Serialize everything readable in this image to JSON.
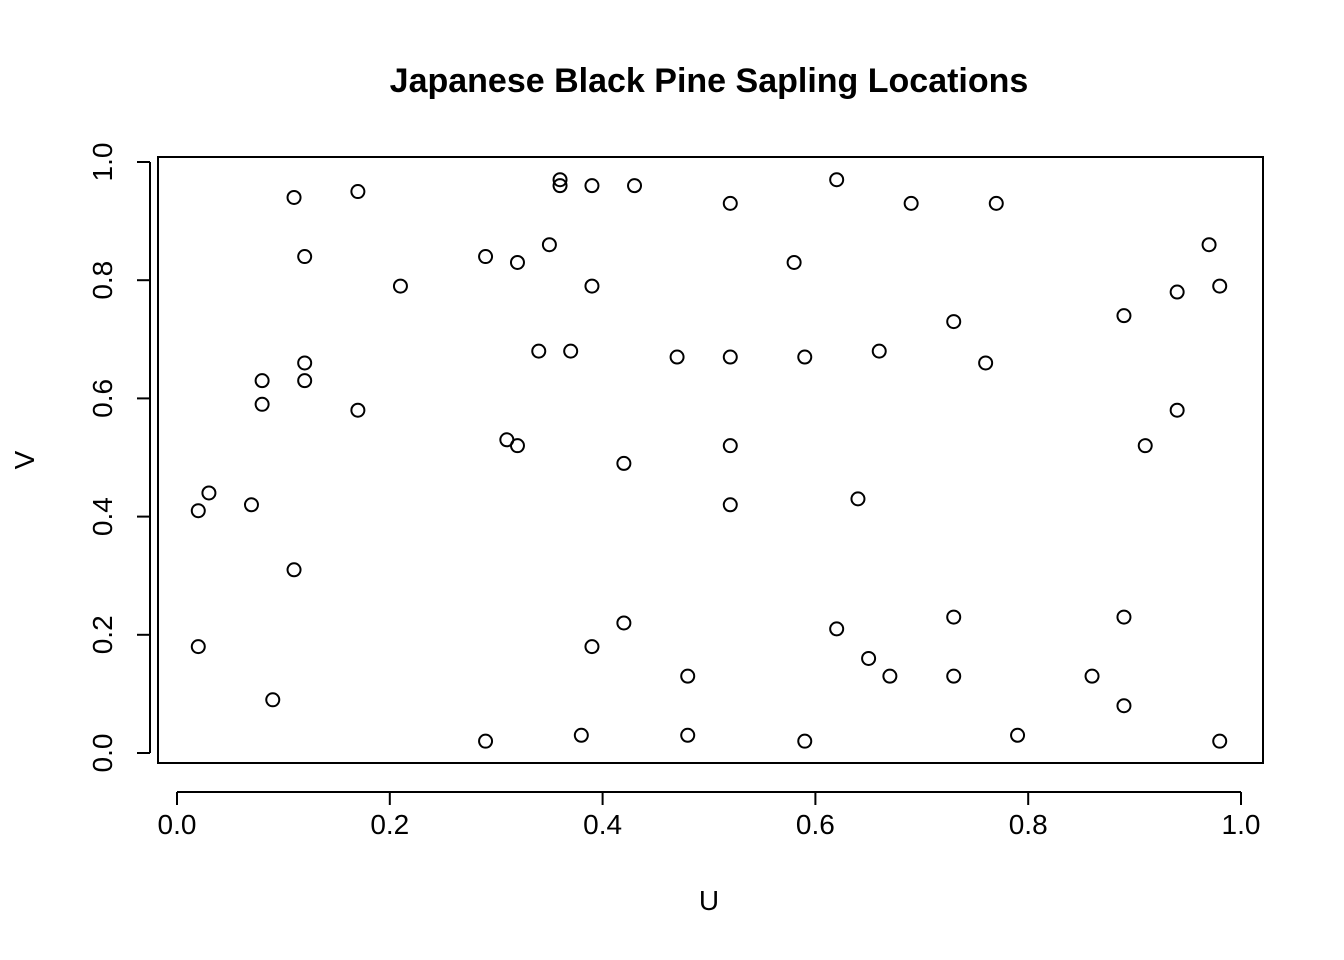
{
  "chart_data": {
    "type": "scatter",
    "title": "Japanese Black Pine Sapling Locations",
    "xlabel": "U",
    "ylabel": "V",
    "xlim": [
      0.0,
      1.0
    ],
    "ylim": [
      0.0,
      1.0
    ],
    "xticks": [
      "0.0",
      "0.2",
      "0.4",
      "0.6",
      "0.8",
      "1.0"
    ],
    "yticks": [
      "0.0",
      "0.2",
      "0.4",
      "0.6",
      "0.8",
      "1.0"
    ],
    "grid": false,
    "marker": "open-circle",
    "points": [
      [
        0.11,
        0.94
      ],
      [
        0.17,
        0.95
      ],
      [
        0.12,
        0.84
      ],
      [
        0.21,
        0.79
      ],
      [
        0.29,
        0.84
      ],
      [
        0.32,
        0.83
      ],
      [
        0.35,
        0.86
      ],
      [
        0.36,
        0.97
      ],
      [
        0.36,
        0.96
      ],
      [
        0.39,
        0.96
      ],
      [
        0.43,
        0.96
      ],
      [
        0.39,
        0.79
      ],
      [
        0.52,
        0.93
      ],
      [
        0.58,
        0.83
      ],
      [
        0.62,
        0.97
      ],
      [
        0.69,
        0.93
      ],
      [
        0.77,
        0.93
      ],
      [
        0.97,
        0.86
      ],
      [
        0.94,
        0.78
      ],
      [
        0.98,
        0.79
      ],
      [
        0.89,
        0.74
      ],
      [
        0.73,
        0.73
      ],
      [
        0.76,
        0.66
      ],
      [
        0.66,
        0.68
      ],
      [
        0.59,
        0.67
      ],
      [
        0.52,
        0.67
      ],
      [
        0.47,
        0.67
      ],
      [
        0.34,
        0.68
      ],
      [
        0.37,
        0.68
      ],
      [
        0.12,
        0.66
      ],
      [
        0.12,
        0.63
      ],
      [
        0.08,
        0.63
      ],
      [
        0.08,
        0.59
      ],
      [
        0.17,
        0.58
      ],
      [
        0.31,
        0.53
      ],
      [
        0.32,
        0.52
      ],
      [
        0.52,
        0.52
      ],
      [
        0.42,
        0.49
      ],
      [
        0.94,
        0.58
      ],
      [
        0.91,
        0.52
      ],
      [
        0.64,
        0.43
      ],
      [
        0.52,
        0.42
      ],
      [
        0.02,
        0.41
      ],
      [
        0.03,
        0.44
      ],
      [
        0.07,
        0.42
      ],
      [
        0.11,
        0.31
      ],
      [
        0.02,
        0.18
      ],
      [
        0.09,
        0.09
      ],
      [
        0.29,
        0.02
      ],
      [
        0.38,
        0.03
      ],
      [
        0.39,
        0.18
      ],
      [
        0.42,
        0.22
      ],
      [
        0.48,
        0.13
      ],
      [
        0.48,
        0.03
      ],
      [
        0.59,
        0.02
      ],
      [
        0.62,
        0.21
      ],
      [
        0.65,
        0.16
      ],
      [
        0.67,
        0.13
      ],
      [
        0.73,
        0.23
      ],
      [
        0.73,
        0.13
      ],
      [
        0.79,
        0.03
      ],
      [
        0.86,
        0.13
      ],
      [
        0.89,
        0.23
      ],
      [
        0.89,
        0.08
      ],
      [
        0.98,
        0.02
      ]
    ]
  }
}
